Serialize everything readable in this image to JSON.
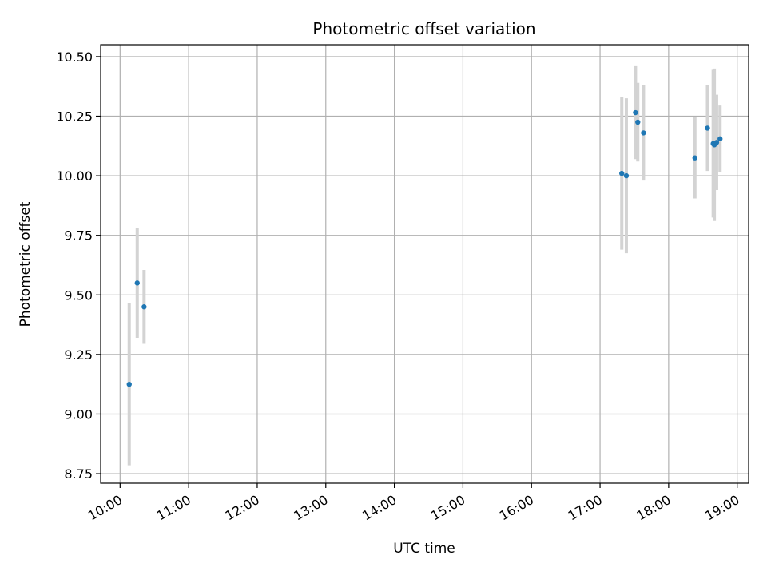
{
  "chart_data": {
    "type": "scatter",
    "title": "Photometric offset variation",
    "xlabel": "UTC time",
    "ylabel": "Photometric offset",
    "x_unit": "UTC hours",
    "xlim": [
      "09:43",
      "19:10"
    ],
    "ylim": [
      8.71,
      10.55
    ],
    "x_ticks": [
      "10:00",
      "11:00",
      "12:00",
      "13:00",
      "14:00",
      "15:00",
      "16:00",
      "17:00",
      "18:00",
      "19:00"
    ],
    "y_ticks": [
      "8.75",
      "9.00",
      "9.25",
      "9.50",
      "9.75",
      "10.00",
      "10.25",
      "10.50"
    ],
    "grid": true,
    "marker_color": "#1f77b4",
    "errorbar_color": "#d3d3d3",
    "points": [
      {
        "x": "10:08",
        "y": 9.125,
        "yerr": 0.34
      },
      {
        "x": "10:15",
        "y": 9.55,
        "yerr": 0.23
      },
      {
        "x": "10:21",
        "y": 9.45,
        "yerr": 0.155
      },
      {
        "x": "17:19",
        "y": 10.01,
        "yerr": 0.32
      },
      {
        "x": "17:23",
        "y": 10.0,
        "yerr": 0.325
      },
      {
        "x": "17:31",
        "y": 10.265,
        "yerr": 0.195
      },
      {
        "x": "17:33",
        "y": 10.225,
        "yerr": 0.165
      },
      {
        "x": "17:38",
        "y": 10.18,
        "yerr": 0.2
      },
      {
        "x": "18:23",
        "y": 10.075,
        "yerr": 0.17
      },
      {
        "x": "18:34",
        "y": 10.2,
        "yerr": 0.18
      },
      {
        "x": "18:39",
        "y": 10.135,
        "yerr": 0.31
      },
      {
        "x": "18:40",
        "y": 10.13,
        "yerr": 0.32
      },
      {
        "x": "18:42",
        "y": 10.14,
        "yerr": 0.2
      },
      {
        "x": "18:45",
        "y": 10.155,
        "yerr": 0.14
      }
    ]
  }
}
